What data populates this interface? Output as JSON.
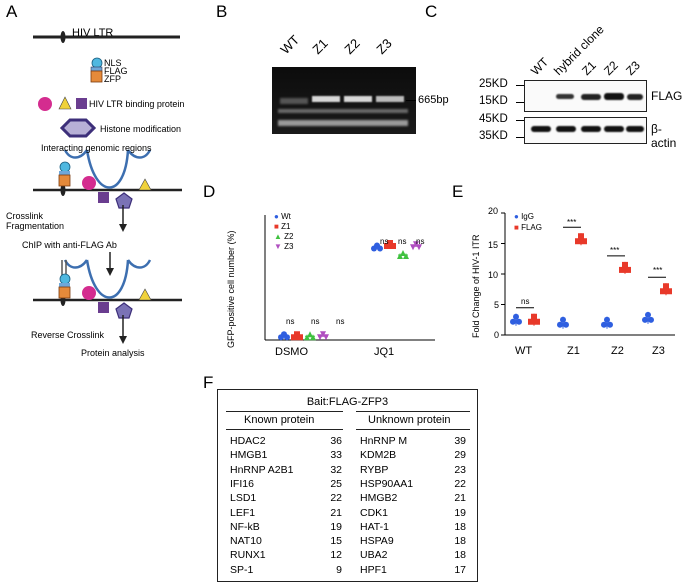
{
  "panels": {
    "A": "A",
    "B": "B",
    "C": "C",
    "D": "D",
    "E": "E",
    "F": "F"
  },
  "panel_a": {
    "hiv_ltr": "HIV LTR",
    "legend_nls": "NLS",
    "legend_flag": "FLAG",
    "legend_zfp": "ZFP",
    "binding_protein": "HIV LTR binding protein",
    "histone_mod": "Histone modification",
    "interacting": "Interacting genomic regions",
    "crosslink": "Crosslink",
    "fragmentation": "Fragmentation",
    "chip": "ChIP with anti-FLAG Ab",
    "reverse": "Reverse Crosslink",
    "protein_analysis": "Protein analysis",
    "colors": {
      "nls": "#4fb8e0",
      "flag": "#e58a3a",
      "circle": "#d42c8f",
      "triangle": "#f0d23a",
      "square": "#6a3d8f",
      "pentagon": "#4b3c8c"
    }
  },
  "panel_b": {
    "lanes": [
      "WT",
      "Z1",
      "Z2",
      "Z3"
    ],
    "band_label": "665bp"
  },
  "panel_c": {
    "lanes": [
      "WT",
      "hybrid clone",
      "Z1",
      "Z2",
      "Z3"
    ],
    "markers_flag": [
      "25KD",
      "15KD"
    ],
    "markers_actin": [
      "45KD",
      "35KD"
    ],
    "flag_label": "FLAG",
    "actin_label": "β-actin"
  },
  "chart_data": [
    {
      "type": "scatter",
      "panel": "D",
      "ylabel": "GFP-positive cell number (%)",
      "categories": [
        "DSMO",
        "JQ1"
      ],
      "series": [
        {
          "name": "Wt",
          "color": "#2f5fe0",
          "marker": "circle",
          "values": [
            3,
            74
          ]
        },
        {
          "name": "Z1",
          "color": "#e8392a",
          "marker": "square",
          "values": [
            3,
            76
          ]
        },
        {
          "name": "Z2",
          "color": "#3fc13f",
          "marker": "triangle",
          "values": [
            3,
            68
          ]
        },
        {
          "name": "Z3",
          "color": "#b04fc0",
          "marker": "triangle-down",
          "values": [
            3,
            75
          ]
        }
      ],
      "annotations": [
        "ns",
        "ns",
        "ns",
        "ns",
        "ns",
        "ns"
      ],
      "ylim": [
        0,
        100
      ]
    },
    {
      "type": "scatter",
      "panel": "E",
      "ylabel": "Fold Change of HIV-1 ITR",
      "categories": [
        "WT",
        "Z1",
        "Z2",
        "Z3"
      ],
      "yticks": [
        "0",
        "5",
        "10",
        "15",
        "20"
      ],
      "ylim": [
        0,
        20
      ],
      "series": [
        {
          "name": "IgG",
          "color": "#2f5fe0",
          "values": [
            2.5,
            2.0,
            2.0,
            2.8
          ]
        },
        {
          "name": "FLAG",
          "color": "#e8392a",
          "values": [
            2.5,
            15.7,
            11.0,
            7.5
          ]
        }
      ],
      "annotations": [
        "ns",
        "***",
        "***",
        "***"
      ]
    }
  ],
  "panel_f": {
    "title": "Bait:FLAG-ZFP3",
    "known_header": "Known protein",
    "unknown_header": "Unknown protein",
    "known": [
      {
        "name": "HDAC2",
        "count": "36"
      },
      {
        "name": "HMGB1",
        "count": "33"
      },
      {
        "name": "HnRNP A2B1",
        "count": "32"
      },
      {
        "name": "IFI16",
        "count": "25"
      },
      {
        "name": "LSD1",
        "count": "22"
      },
      {
        "name": "LEF1",
        "count": "21"
      },
      {
        "name": "NF-kB",
        "count": "19"
      },
      {
        "name": "NAT10",
        "count": "15"
      },
      {
        "name": "RUNX1",
        "count": "12"
      },
      {
        "name": "SP-1",
        "count": "9"
      }
    ],
    "unknown": [
      {
        "name": "HnRNP M",
        "count": "39"
      },
      {
        "name": "KDM2B",
        "count": "29"
      },
      {
        "name": "RYBP",
        "count": "23"
      },
      {
        "name": "HSP90AA1",
        "count": "22"
      },
      {
        "name": "HMGB2",
        "count": "21"
      },
      {
        "name": "CDK1",
        "count": "19"
      },
      {
        "name": "HAT-1",
        "count": "18"
      },
      {
        "name": "HSPA9",
        "count": "18"
      },
      {
        "name": "UBA2",
        "count": "18"
      },
      {
        "name": "HPF1",
        "count": "17"
      }
    ]
  }
}
